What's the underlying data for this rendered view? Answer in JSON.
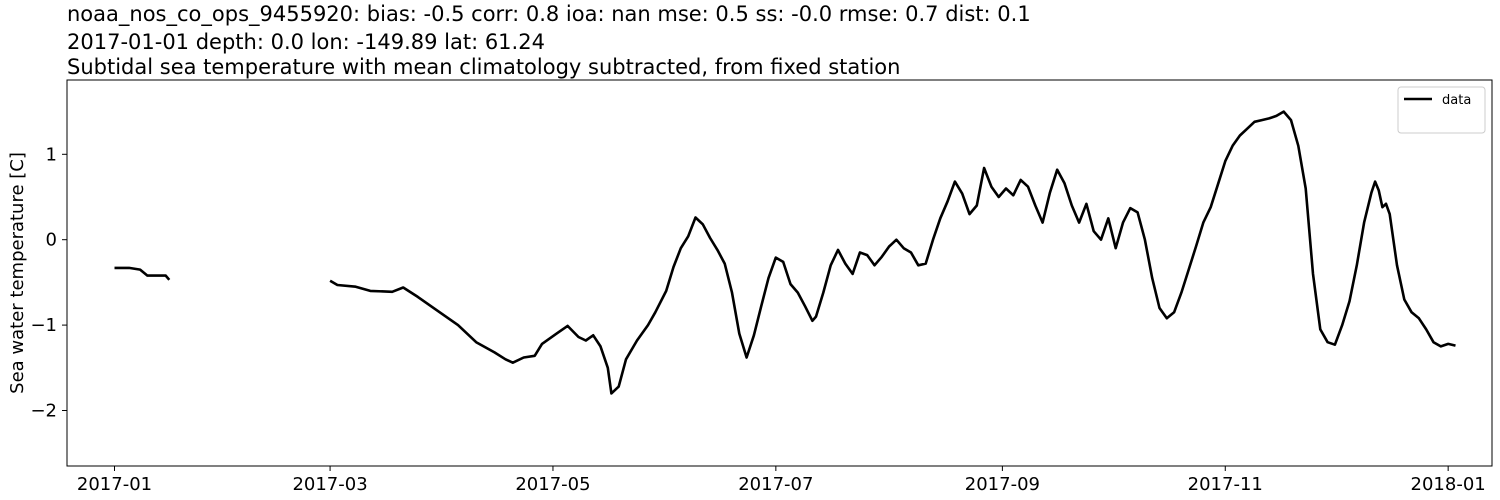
{
  "header": {
    "line1": "noaa_nos_co_ops_9455920: bias: -0.5  corr: 0.8  ioa: nan  mse: 0.5  ss: -0.0  rmse: 0.7  dist: 0.1",
    "line2": "2017-01-01 depth: 0.0 lon: -149.89 lat: 61.24",
    "line3": "Subtidal sea temperature with mean climatology subtracted, from fixed station"
  },
  "chart_data": {
    "type": "line",
    "title": "Subtidal sea temperature with mean climatology subtracted, from fixed station",
    "xlabel": "",
    "ylabel": "Sea water temperature [C]",
    "xlim": [
      "2016-12-19",
      "2018-01-13"
    ],
    "ylim": [
      -2.65,
      1.87
    ],
    "grid": false,
    "legend_position": "top-right",
    "x_ticks": [
      "2017-01",
      "2017-03",
      "2017-05",
      "2017-07",
      "2017-09",
      "2017-11",
      "2018-01"
    ],
    "y_ticks": [
      -2,
      -1,
      0,
      1
    ],
    "y_tick_labels": [
      "−2",
      "−1",
      "0",
      "1"
    ],
    "series": [
      {
        "name": "data",
        "color": "#000000",
        "segments": [
          [
            [
              "2017-01-01",
              -0.33
            ],
            [
              "2017-01-05",
              -0.33
            ],
            [
              "2017-01-08",
              -0.35
            ],
            [
              "2017-01-10",
              -0.42
            ],
            [
              "2017-01-13",
              -0.42
            ],
            [
              "2017-01-15",
              -0.42
            ],
            [
              "2017-01-16",
              -0.47
            ]
          ],
          [
            [
              "2017-03-01",
              -0.48
            ],
            [
              "2017-03-03",
              -0.53
            ],
            [
              "2017-03-08",
              -0.55
            ],
            [
              "2017-03-12",
              -0.6
            ],
            [
              "2017-03-18",
              -0.61
            ],
            [
              "2017-03-21",
              -0.56
            ],
            [
              "2017-03-25",
              -0.67
            ],
            [
              "2017-03-30",
              -0.82
            ],
            [
              "2017-04-05",
              -1.0
            ],
            [
              "2017-04-10",
              -1.2
            ],
            [
              "2017-04-15",
              -1.32
            ],
            [
              "2017-04-18",
              -1.4
            ],
            [
              "2017-04-20",
              -1.44
            ],
            [
              "2017-04-23",
              -1.38
            ],
            [
              "2017-04-26",
              -1.36
            ],
            [
              "2017-04-28",
              -1.22
            ],
            [
              "2017-05-02",
              -1.1
            ],
            [
              "2017-05-05",
              -1.01
            ],
            [
              "2017-05-08",
              -1.14
            ],
            [
              "2017-05-10",
              -1.18
            ],
            [
              "2017-05-12",
              -1.12
            ],
            [
              "2017-05-14",
              -1.25
            ],
            [
              "2017-05-16",
              -1.5
            ],
            [
              "2017-05-17",
              -1.8
            ],
            [
              "2017-05-19",
              -1.72
            ],
            [
              "2017-05-21",
              -1.4
            ],
            [
              "2017-05-24",
              -1.18
            ],
            [
              "2017-05-27",
              -1.0
            ],
            [
              "2017-05-29",
              -0.85
            ],
            [
              "2017-06-01",
              -0.6
            ],
            [
              "2017-06-03",
              -0.32
            ],
            [
              "2017-06-05",
              -0.1
            ],
            [
              "2017-06-07",
              0.04
            ],
            [
              "2017-06-09",
              0.26
            ],
            [
              "2017-06-11",
              0.18
            ],
            [
              "2017-06-13",
              0.02
            ],
            [
              "2017-06-15",
              -0.12
            ],
            [
              "2017-06-17",
              -0.28
            ],
            [
              "2017-06-19",
              -0.62
            ],
            [
              "2017-06-21",
              -1.1
            ],
            [
              "2017-06-23",
              -1.38
            ],
            [
              "2017-06-25",
              -1.12
            ],
            [
              "2017-06-27",
              -0.78
            ],
            [
              "2017-06-29",
              -0.45
            ],
            [
              "2017-07-01",
              -0.21
            ],
            [
              "2017-07-03",
              -0.26
            ],
            [
              "2017-07-05",
              -0.52
            ],
            [
              "2017-07-07",
              -0.62
            ],
            [
              "2017-07-09",
              -0.78
            ],
            [
              "2017-07-11",
              -0.95
            ],
            [
              "2017-07-12",
              -0.9
            ],
            [
              "2017-07-14",
              -0.62
            ],
            [
              "2017-07-16",
              -0.3
            ],
            [
              "2017-07-18",
              -0.12
            ],
            [
              "2017-07-20",
              -0.28
            ],
            [
              "2017-07-22",
              -0.4
            ],
            [
              "2017-07-24",
              -0.15
            ],
            [
              "2017-07-26",
              -0.18
            ],
            [
              "2017-07-28",
              -0.3
            ],
            [
              "2017-07-30",
              -0.2
            ],
            [
              "2017-08-01",
              -0.08
            ],
            [
              "2017-08-03",
              0.0
            ],
            [
              "2017-08-05",
              -0.1
            ],
            [
              "2017-08-07",
              -0.15
            ],
            [
              "2017-08-09",
              -0.3
            ],
            [
              "2017-08-11",
              -0.28
            ],
            [
              "2017-08-13",
              0.0
            ],
            [
              "2017-08-15",
              0.25
            ],
            [
              "2017-08-17",
              0.45
            ],
            [
              "2017-08-19",
              0.68
            ],
            [
              "2017-08-21",
              0.54
            ],
            [
              "2017-08-23",
              0.3
            ],
            [
              "2017-08-25",
              0.4
            ],
            [
              "2017-08-27",
              0.84
            ],
            [
              "2017-08-29",
              0.62
            ],
            [
              "2017-08-31",
              0.5
            ],
            [
              "2017-09-02",
              0.6
            ],
            [
              "2017-09-04",
              0.52
            ],
            [
              "2017-09-06",
              0.7
            ],
            [
              "2017-09-08",
              0.62
            ],
            [
              "2017-09-10",
              0.4
            ],
            [
              "2017-09-12",
              0.2
            ],
            [
              "2017-09-14",
              0.55
            ],
            [
              "2017-09-16",
              0.82
            ],
            [
              "2017-09-18",
              0.66
            ],
            [
              "2017-09-20",
              0.4
            ],
            [
              "2017-09-22",
              0.2
            ],
            [
              "2017-09-24",
              0.42
            ],
            [
              "2017-09-26",
              0.1
            ],
            [
              "2017-09-28",
              0.0
            ],
            [
              "2017-09-30",
              0.25
            ],
            [
              "2017-10-02",
              -0.1
            ],
            [
              "2017-10-04",
              0.2
            ],
            [
              "2017-10-06",
              0.37
            ],
            [
              "2017-10-08",
              0.32
            ],
            [
              "2017-10-10",
              0.0
            ],
            [
              "2017-10-12",
              -0.45
            ],
            [
              "2017-10-14",
              -0.8
            ],
            [
              "2017-10-16",
              -0.92
            ],
            [
              "2017-10-18",
              -0.85
            ],
            [
              "2017-10-20",
              -0.62
            ],
            [
              "2017-10-22",
              -0.35
            ],
            [
              "2017-10-24",
              -0.08
            ],
            [
              "2017-10-26",
              0.2
            ],
            [
              "2017-10-28",
              0.38
            ],
            [
              "2017-10-30",
              0.65
            ],
            [
              "2017-11-01",
              0.92
            ],
            [
              "2017-11-03",
              1.1
            ],
            [
              "2017-11-05",
              1.22
            ],
            [
              "2017-11-07",
              1.3
            ],
            [
              "2017-11-09",
              1.38
            ],
            [
              "2017-11-11",
              1.4
            ],
            [
              "2017-11-13",
              1.42
            ],
            [
              "2017-11-15",
              1.45
            ],
            [
              "2017-11-17",
              1.5
            ],
            [
              "2017-11-19",
              1.4
            ],
            [
              "2017-11-21",
              1.1
            ],
            [
              "2017-11-23",
              0.6
            ],
            [
              "2017-11-25",
              -0.4
            ],
            [
              "2017-11-27",
              -1.05
            ],
            [
              "2017-11-29",
              -1.2
            ],
            [
              "2017-12-01",
              -1.23
            ],
            [
              "2017-12-03",
              -1.0
            ],
            [
              "2017-12-05",
              -0.72
            ],
            [
              "2017-12-07",
              -0.3
            ],
            [
              "2017-12-09",
              0.2
            ],
            [
              "2017-12-11",
              0.55
            ],
            [
              "2017-12-12",
              0.68
            ],
            [
              "2017-12-13",
              0.58
            ],
            [
              "2017-12-14",
              0.38
            ],
            [
              "2017-12-15",
              0.42
            ],
            [
              "2017-12-16",
              0.3
            ],
            [
              "2017-12-18",
              -0.3
            ],
            [
              "2017-12-20",
              -0.7
            ],
            [
              "2017-12-22",
              -0.85
            ],
            [
              "2017-12-24",
              -0.92
            ],
            [
              "2017-12-26",
              -1.05
            ],
            [
              "2017-12-28",
              -1.2
            ],
            [
              "2017-12-30",
              -1.25
            ],
            [
              "2018-01-01",
              -1.22
            ],
            [
              "2018-01-03",
              -1.24
            ]
          ]
        ]
      }
    ]
  }
}
